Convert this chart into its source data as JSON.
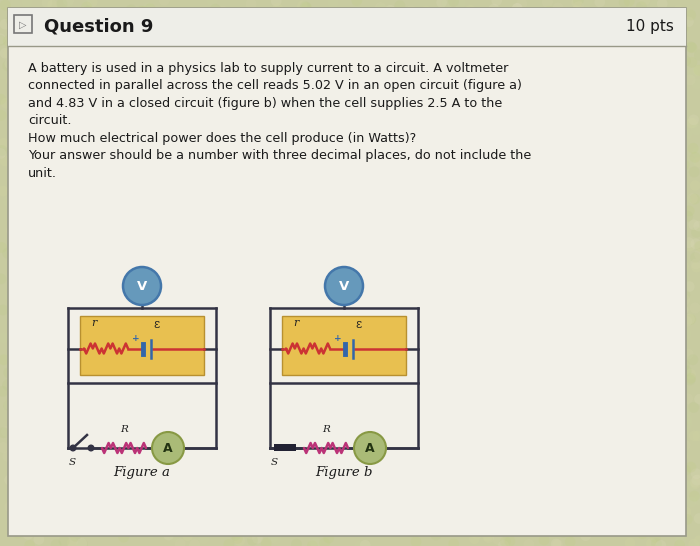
{
  "title": "Question 9",
  "pts": "10 pts",
  "body_lines": [
    "A battery is used in a physics lab to supply current to a circuit. A voltmeter",
    "connected in parallel across the cell reads 5.02 V in an open circuit (figure a)",
    "and 4.83 V in a closed circuit (figure b) when the cell supplies 2.5 A to the",
    "circuit.",
    "How much electrical power does the cell produce (in Watts)?",
    "Your answer should be a number with three decimal places, do not include the",
    "unit."
  ],
  "fig_a_label": "Figure a",
  "fig_b_label": "Figure b",
  "outer_bg": "#c8cba0",
  "card_bg": "#f2f0e8",
  "header_bg": "#f2f0e8",
  "divider_color": "#999988",
  "text_color": "#1a1a1a",
  "voltmeter_fill": "#6699bb",
  "voltmeter_edge": "#4477aa",
  "ammeter_fill": "#aabb77",
  "ammeter_edge": "#889944",
  "battery_box_fill": "#e8c050",
  "battery_box_edge": "#b89030",
  "internal_res_color": "#cc3333",
  "battery_line_color": "#3366aa",
  "external_res_color": "#bb3377",
  "wire_color": "#333344",
  "switch_color": "#222233"
}
